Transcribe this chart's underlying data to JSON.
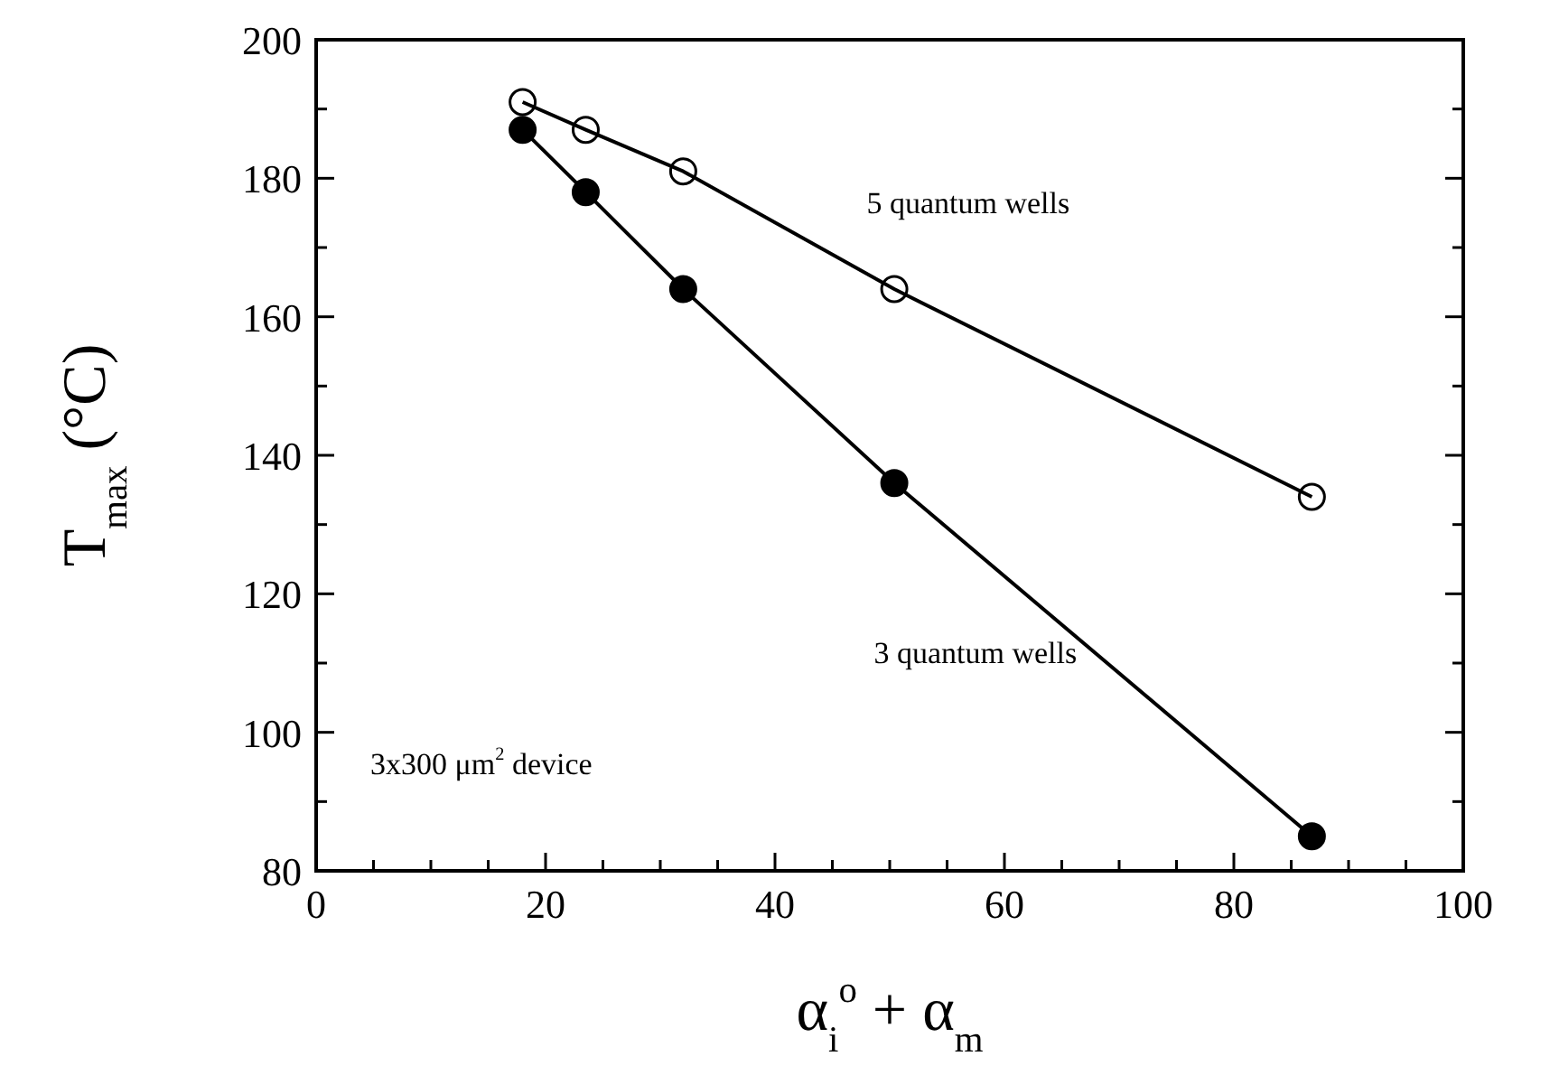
{
  "chart_data": {
    "type": "line",
    "xlabel": "α$_{i}$$^{o}$ + α$_{m}$",
    "ylabel": "T$_{max}$ (°C)",
    "xlim": [
      0,
      100
    ],
    "ylim": [
      80,
      200
    ],
    "xticks": [
      0,
      {
        "value": 5,
        "label": null
      },
      {
        "value": 10,
        "label": null
      },
      {
        "value": 15,
        "label": null
      },
      20,
      {
        "value": 25,
        "label": null
      },
      {
        "value": 30,
        "label": null
      },
      {
        "value": 35,
        "label": null
      },
      40,
      {
        "value": 45,
        "label": null
      },
      {
        "value": 50,
        "label": null
      },
      {
        "value": 55,
        "label": null
      },
      60,
      {
        "value": 65,
        "label": null
      },
      {
        "value": 70,
        "label": null
      },
      {
        "value": 75,
        "label": null
      },
      80,
      {
        "value": 85,
        "label": null
      },
      {
        "value": 90,
        "label": null
      },
      {
        "value": 95,
        "label": null
      },
      100
    ],
    "yticks": [
      80,
      {
        "value": 90,
        "label": null
      },
      100,
      {
        "value": 110,
        "label": null
      },
      120,
      {
        "value": 130,
        "label": null
      },
      140,
      {
        "value": 150,
        "label": null
      },
      160,
      {
        "value": 170,
        "label": null
      },
      180,
      {
        "value": 190,
        "label": null
      },
      200
    ],
    "x": [
      18,
      23.5,
      32,
      50.4,
      86.8
    ],
    "marker": "circle",
    "line_style": "solid",
    "series": [
      {
        "name": "5 quantum wells",
        "color": "#000000",
        "values": [
          191,
          187,
          181,
          164,
          134
        ]
      },
      {
        "name": "3 quantum wells",
        "color": "#000000",
        "values": [
          187,
          178,
          164,
          136,
          85
        ]
      }
    ],
    "annotations": [
      "3x300 μm$^{2}$ device"
    ]
  }
}
